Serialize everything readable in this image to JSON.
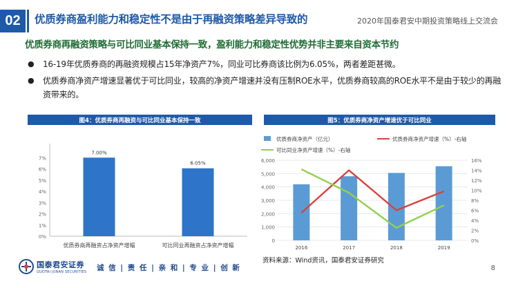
{
  "header": {
    "section_number": "02",
    "title": "优质券商盈利能力和稳定性不是由于再融资策略差异导致的",
    "event": "2020年国泰君安中期投资策略线上交流会"
  },
  "subtitle": "优质券商再融资策略与可比同业基本保持一致，盈利能力和稳定性优势并非主要来自资本节约",
  "bullets": [
    "16-19年优质券商的再融资规模占15年净资产7%，同业可比券商该比例为6.05%，两者差距甚微。",
    "优质券商净资产增速显著优于可比同业，较高的净资产增速并没有压制ROE水平，优质券商较高的ROE水平不是由于较少的再融资带来的。"
  ],
  "figures": {
    "fig4_title": "图4：优质券商再融资与可比同业基本保持一致",
    "fig5_title": "图5：优质券商净资产增速优于可比同业"
  },
  "chart_data": [
    {
      "type": "bar",
      "title": "图4：优质券商再融资与可比同业基本保持一致",
      "categories": [
        "优质券商再融资占净资产增幅",
        "可比同业再融资占净资产增幅"
      ],
      "values": [
        7.0,
        6.05
      ],
      "data_labels": [
        "7.00%",
        "6.05%"
      ],
      "ylim": [
        0,
        8
      ],
      "yticks": [
        "0%",
        "1%",
        "2%",
        "3%",
        "4%",
        "5%",
        "6%",
        "7%"
      ],
      "color": "#2e74c8",
      "grid": false
    },
    {
      "type": "bar+line",
      "title": "图5：优质券商净资产增速优于可比同业",
      "categories": [
        "2016",
        "2017",
        "2018",
        "2019"
      ],
      "series": [
        {
          "name": "优质券商净资产（亿元）",
          "kind": "bar",
          "axis": "left",
          "values": [
            4200,
            4800,
            5050,
            5550
          ],
          "color": "#5b9bd5"
        },
        {
          "name": "优质券商净资产增速（%）-右轴",
          "kind": "line",
          "axis": "right",
          "values": [
            5.5,
            14.0,
            6.0,
            9.8
          ],
          "color": "#d9423a"
        },
        {
          "name": "可比同业净资产增速（%）-右轴",
          "kind": "line",
          "axis": "right",
          "values": [
            14.2,
            9.5,
            2.5,
            7.0
          ],
          "color": "#92d050"
        }
      ],
      "left_ylim": [
        0,
        6000
      ],
      "left_yticks": [
        "0",
        "1,000",
        "2,000",
        "3,000",
        "4,000",
        "5,000",
        "6,000"
      ],
      "right_ylim": [
        0,
        16
      ],
      "right_yticks": [
        "0%",
        "2%",
        "4%",
        "6%",
        "8%",
        "10%",
        "12%",
        "14%",
        "16%"
      ],
      "legend_position": "top",
      "grid": true
    }
  ],
  "source": "资料来源：Wind资讯，国泰君安证券研究",
  "footer": {
    "logo_cn": "国泰君安证券",
    "logo_en": "GUOTAI JUNAN SECURITIES",
    "motto": "诚 信 | 责 任 | 亲 和 | 专 业 | 创 新",
    "page": "8"
  }
}
